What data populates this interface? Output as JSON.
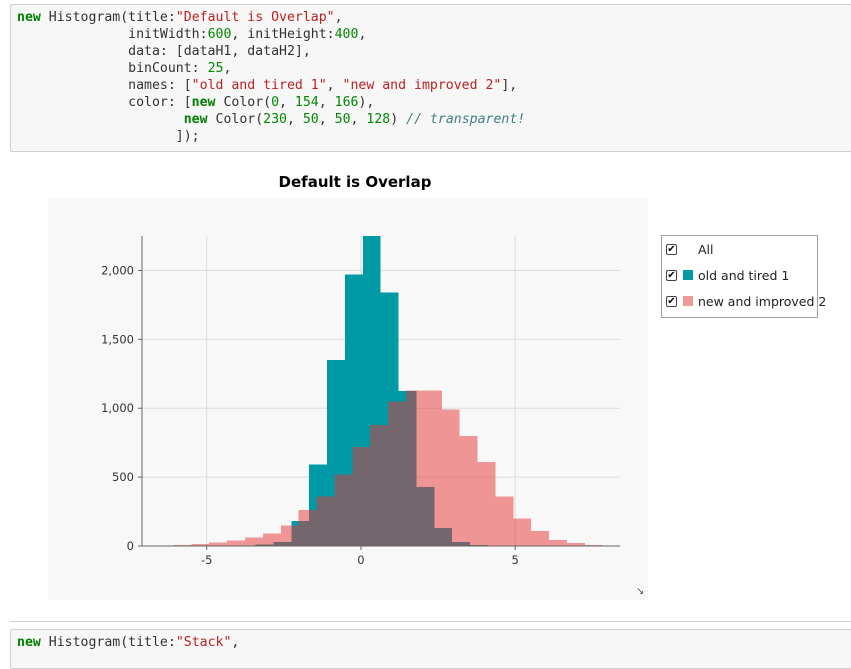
{
  "code_cells": {
    "first": [
      [
        [
          "kw",
          "new"
        ],
        [
          "p",
          " Histogram(title:"
        ],
        [
          "str",
          "\"Default is Overlap\""
        ],
        [
          "p",
          ","
        ]
      ],
      [
        [
          "p",
          "              initWidth:"
        ],
        [
          "num",
          "600"
        ],
        [
          "p",
          ", initHeight:"
        ],
        [
          "num",
          "400"
        ],
        [
          "p",
          ","
        ]
      ],
      [
        [
          "p",
          "              data: [dataH1, dataH2],"
        ]
      ],
      [
        [
          "p",
          "              binCount: "
        ],
        [
          "num",
          "25"
        ],
        [
          "p",
          ","
        ]
      ],
      [
        [
          "p",
          "              names: ["
        ],
        [
          "str",
          "\"old and tired 1\""
        ],
        [
          "p",
          ", "
        ],
        [
          "str",
          "\"new and improved 2\""
        ],
        [
          "p",
          "],"
        ]
      ],
      [
        [
          "p",
          "              color: ["
        ],
        [
          "kw",
          "new"
        ],
        [
          "p",
          " Color("
        ],
        [
          "num",
          "0"
        ],
        [
          "p",
          ", "
        ],
        [
          "num",
          "154"
        ],
        [
          "p",
          ", "
        ],
        [
          "num",
          "166"
        ],
        [
          "p",
          "),"
        ]
      ],
      [
        [
          "p",
          "                     "
        ],
        [
          "kw",
          "new"
        ],
        [
          "p",
          " Color("
        ],
        [
          "num",
          "230"
        ],
        [
          "p",
          ", "
        ],
        [
          "num",
          "50"
        ],
        [
          "p",
          ", "
        ],
        [
          "num",
          "50"
        ],
        [
          "p",
          ", "
        ],
        [
          "num",
          "128"
        ],
        [
          "p",
          ") "
        ],
        [
          "cm",
          "// transparent!"
        ]
      ],
      [
        [
          "p",
          "                    ]);"
        ]
      ]
    ],
    "second": [
      [
        [
          "kw",
          "new"
        ],
        [
          "p",
          " Histogram(title:"
        ],
        [
          "str",
          "\"Stack\""
        ],
        [
          "p",
          ","
        ]
      ]
    ]
  },
  "legend": {
    "all_label": "All",
    "checkmark": "✔"
  },
  "chart_data": {
    "type": "bar",
    "title": "Default is Overlap",
    "xlabel": "",
    "ylabel": "",
    "xlim": [
      -7.1,
      8.4
    ],
    "ylim": [
      0,
      2250
    ],
    "xticks": [
      -5,
      0,
      5
    ],
    "yticks": [
      0,
      500,
      1000,
      1500,
      2000
    ],
    "grid": true,
    "legend_position": "right",
    "overlap": true,
    "series": [
      {
        "name": "old and tired 1",
        "color": "#009aa6",
        "opacity": 1,
        "bin_start": -4.0,
        "bin_width": 0.58,
        "values": [
          4,
          10,
          30,
          180,
          590,
          1350,
          1970,
          2250,
          1840,
          1125,
          430,
          130,
          28,
          6,
          2
        ]
      },
      {
        "name": "new and improved 2",
        "color": "#e63232",
        "opacity": 0.5,
        "bin_start": -6.08,
        "bin_width": 0.58,
        "values": [
          8,
          15,
          25,
          40,
          60,
          90,
          150,
          260,
          360,
          520,
          720,
          880,
          1050,
          1130,
          1130,
          990,
          800,
          610,
          360,
          200,
          110,
          45,
          20,
          7,
          3
        ]
      }
    ]
  }
}
